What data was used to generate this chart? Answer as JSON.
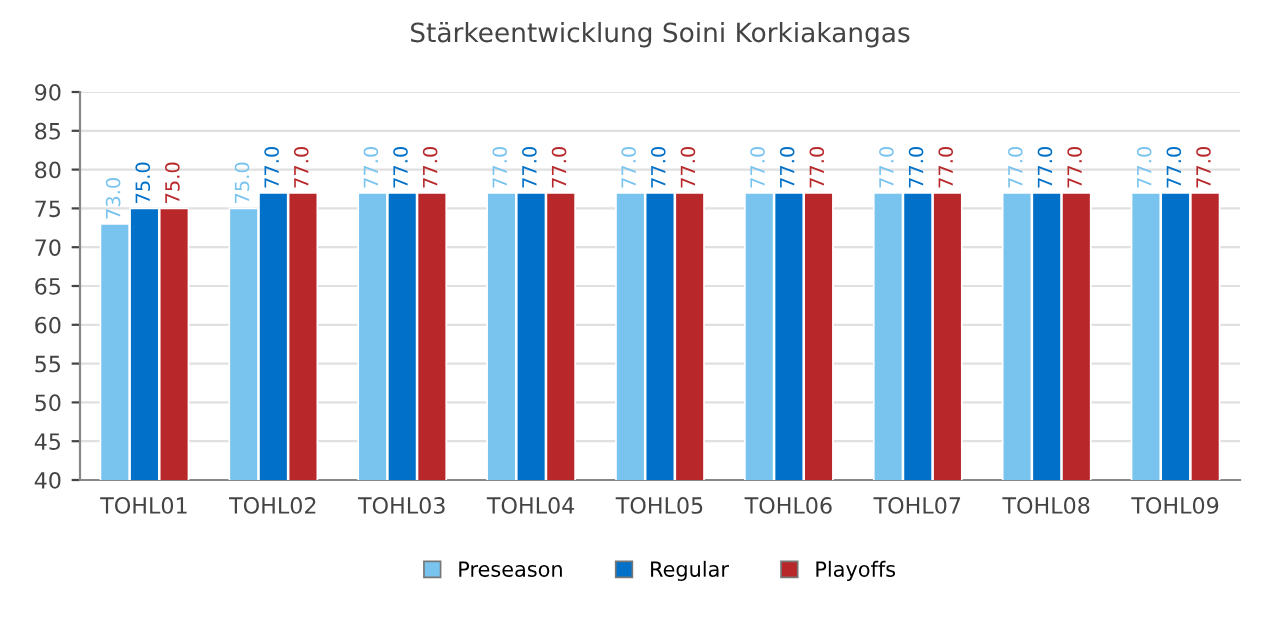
{
  "chart_data": {
    "type": "bar",
    "title": "Stärkeentwicklung Soini Korkiakangas",
    "categories": [
      "TOHL01",
      "TOHL02",
      "TOHL03",
      "TOHL04",
      "TOHL05",
      "TOHL06",
      "TOHL07",
      "TOHL08",
      "TOHL09"
    ],
    "series": [
      {
        "name": "Preseason",
        "color": "#79c4ef",
        "values": [
          73,
          75,
          77,
          77,
          77,
          77,
          77,
          77,
          77
        ],
        "value_labels": [
          "73.0",
          "75.0",
          "77.0",
          "77.0",
          "77.0",
          "77.0",
          "77.0",
          "77.0",
          "77.0"
        ]
      },
      {
        "name": "Regular",
        "color": "#0070c8",
        "values": [
          75,
          77,
          77,
          77,
          77,
          77,
          77,
          77,
          77
        ],
        "value_labels": [
          "75.0",
          "77.0",
          "77.0",
          "77.0",
          "77.0",
          "77.0",
          "77.0",
          "77.0",
          "77.0"
        ]
      },
      {
        "name": "Playoffs",
        "color": "#b8282a",
        "values": [
          75,
          77,
          77,
          77,
          77,
          77,
          77,
          77,
          77
        ],
        "value_labels": [
          "75.0",
          "77.0",
          "77.0",
          "77.0",
          "77.0",
          "77.0",
          "77.0",
          "77.0",
          "77.0"
        ]
      }
    ],
    "ylim": [
      40,
      90
    ],
    "yticks": [
      40,
      45,
      50,
      55,
      60,
      65,
      70,
      75,
      80,
      85,
      90
    ],
    "grid": "y",
    "legend": "bottom"
  }
}
